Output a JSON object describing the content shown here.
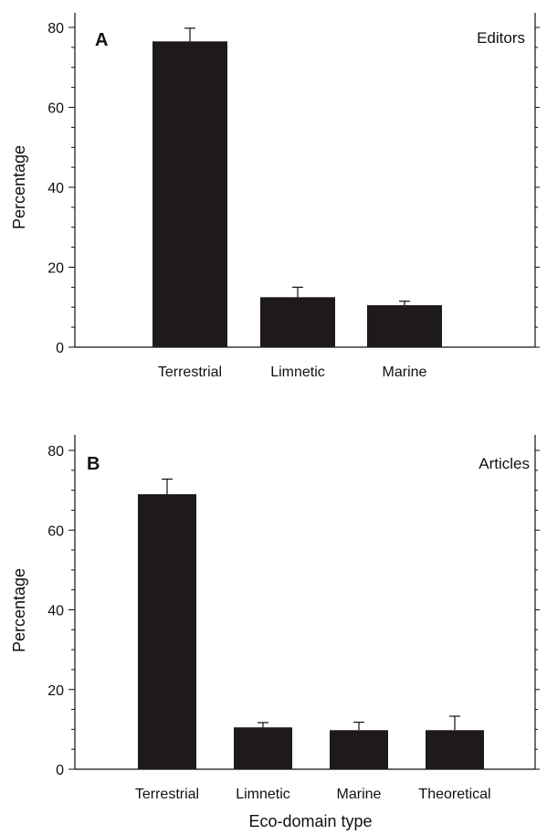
{
  "figure": {
    "xlabel": "Eco-domain type"
  },
  "chart_data": [
    {
      "type": "bar",
      "panel": "A",
      "title": "Editors",
      "ylabel": "Percentage",
      "ylim": [
        0,
        80
      ],
      "yticks": [
        0,
        20,
        40,
        60,
        80
      ],
      "categories": [
        "Terrestrial",
        "Limnetic",
        "Marine"
      ],
      "values": [
        76.5,
        12.5,
        10.5
      ],
      "errors": [
        3.3,
        2.5,
        1.0
      ],
      "bar_color": "#1e1a1b",
      "grid": false
    },
    {
      "type": "bar",
      "panel": "B",
      "title": "Articles",
      "ylabel": "Percentage",
      "ylim": [
        0,
        80
      ],
      "yticks": [
        0,
        20,
        40,
        60,
        80
      ],
      "categories": [
        "Terrestrial",
        "Limnetic",
        "Marine",
        "Theoretical"
      ],
      "values": [
        69,
        10.5,
        9.8,
        9.8
      ],
      "errors": [
        3.8,
        1.2,
        2.0,
        3.5
      ],
      "bar_color": "#1e1a1b",
      "grid": false
    }
  ]
}
